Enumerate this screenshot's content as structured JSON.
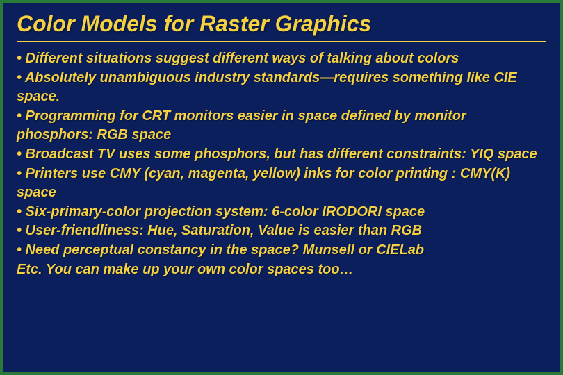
{
  "slide": {
    "title": "Color Models for  Raster Graphics",
    "bullets": [
      "• Different situations suggest different ways of talking about colors",
      "• Absolutely unambiguous industry standards—requires something like CIE space.",
      "• Programming for CRT monitors easier in space defined by monitor phosphors: RGB space",
      "• Broadcast TV uses some phosphors, but has different constraints: YIQ space",
      "• Printers use CMY (cyan, magenta, yellow) inks for color printing : CMY(K) space",
      "• Six-primary-color projection system: 6-color IRODORI space",
      "• User-friendliness: Hue, Saturation, Value is easier than RGB",
      "• Need perceptual constancy in the space? Munsell or CIELab"
    ],
    "footer": "Etc. You can make up your own color spaces too…"
  },
  "style": {
    "background_color": "#0a1f5c",
    "border_color": "#2a7a3a",
    "text_color": "#f5d040",
    "title_fontsize": 32,
    "body_fontsize": 20,
    "font_weight": "bold",
    "font_style": "italic",
    "divider_color": "#f5d040"
  }
}
